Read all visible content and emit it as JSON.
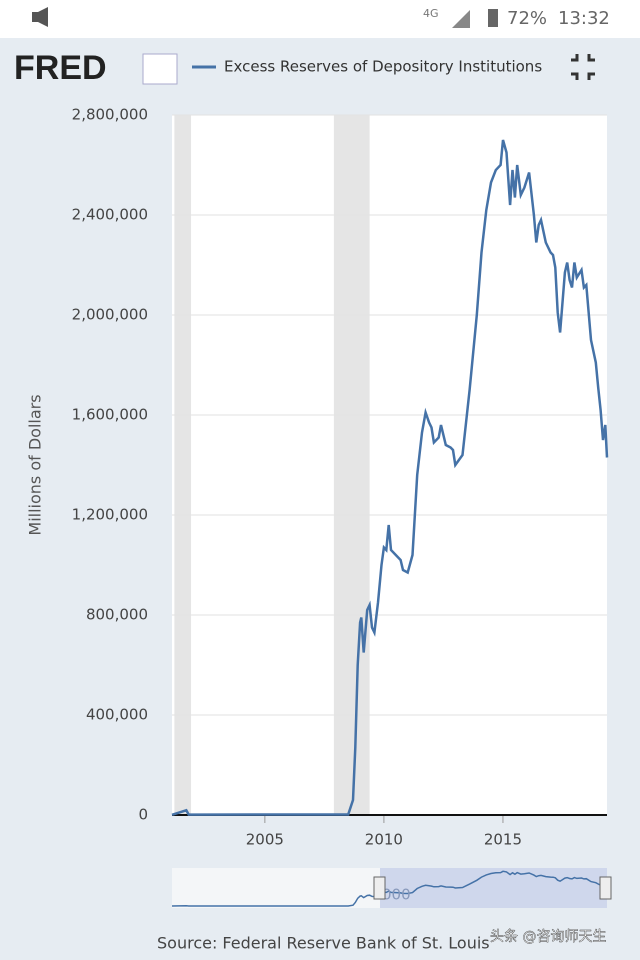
{
  "status_bar": {
    "network": "4G",
    "battery": "72%",
    "time": "13:32"
  },
  "header": {
    "logo": "FRED"
  },
  "chart_data": {
    "type": "line",
    "y_label": "Millions of Dollars",
    "x": [
      2001.1,
      2001.7,
      2001.8,
      2008.5,
      2008.7,
      2008.8,
      2008.9,
      2009.0,
      2009.05,
      2009.15,
      2009.3,
      2009.4,
      2009.5,
      2009.6,
      2009.75,
      2009.9,
      2010.0,
      2010.1,
      2010.2,
      2010.3,
      2010.5,
      2010.7,
      2010.8,
      2011.0,
      2011.2,
      2011.4,
      2011.6,
      2011.75,
      2011.9,
      2012.0,
      2012.1,
      2012.3,
      2012.4,
      2012.6,
      2012.8,
      2012.9,
      2013.0,
      2013.3,
      2013.6,
      2013.9,
      2014.1,
      2014.3,
      2014.5,
      2014.7,
      2014.9,
      2015.0,
      2015.15,
      2015.3,
      2015.4,
      2015.5,
      2015.6,
      2015.75,
      2015.9,
      2016.1,
      2016.3,
      2016.4,
      2016.5,
      2016.6,
      2016.8,
      2017.0,
      2017.1,
      2017.2,
      2017.3,
      2017.4,
      2017.6,
      2017.7,
      2017.8,
      2017.9,
      2018.0,
      2018.1,
      2018.3,
      2018.4,
      2018.5,
      2018.7,
      2018.9,
      2019.0,
      2019.1,
      2019.2,
      2019.3,
      2019.37
    ],
    "series": [
      {
        "name": "Excess Reserves of Depository Institutions",
        "color": "#4572a7",
        "values": [
          1000,
          19000,
          1500,
          2000,
          60000,
          270000,
          600000,
          770000,
          790000,
          650000,
          820000,
          840000,
          750000,
          730000,
          850000,
          1000000,
          1070000,
          1060000,
          1160000,
          1060000,
          1040000,
          1020000,
          980000,
          970000,
          1040000,
          1360000,
          1530000,
          1610000,
          1570000,
          1550000,
          1490000,
          1510000,
          1560000,
          1480000,
          1470000,
          1460000,
          1400000,
          1440000,
          1700000,
          2000000,
          2250000,
          2420000,
          2530000,
          2580000,
          2600000,
          2700000,
          2650000,
          2440000,
          2580000,
          2470000,
          2600000,
          2480000,
          2510000,
          2570000,
          2400000,
          2290000,
          2360000,
          2380000,
          2290000,
          2250000,
          2240000,
          2190000,
          2010000,
          1930000,
          2170000,
          2210000,
          2140000,
          2110000,
          2210000,
          2150000,
          2180000,
          2110000,
          2120000,
          1900000,
          1810000,
          1710000,
          1620000,
          1500000,
          1560000,
          1430000
        ]
      }
    ],
    "recessions": [
      [
        2001.2,
        2001.9
      ],
      [
        2007.9,
        2009.4
      ]
    ],
    "xlim": [
      2001.1,
      2019.37
    ],
    "xticks": [
      2005,
      2010,
      2015
    ],
    "ylim": [
      0,
      2800000
    ],
    "yticks": [
      0,
      {
        "value": 400000,
        "label": "400,000"
      },
      {
        "value": 800000,
        "label": "800,000"
      },
      {
        "value": 1200000,
        "label": "1,200,000"
      },
      {
        "value": 1600000,
        "label": "1,600,000"
      },
      {
        "value": 2000000,
        "label": "2,000,000"
      },
      {
        "value": 2400000,
        "label": "2,400,000"
      },
      {
        "value": 2800000,
        "label": "2,800,000"
      }
    ],
    "grid": true
  },
  "navigator": {
    "label": "000"
  },
  "footer": {
    "source": "Source: Federal Reserve Bank of St. Louis",
    "watermark": "头条 @咨询师天生"
  }
}
